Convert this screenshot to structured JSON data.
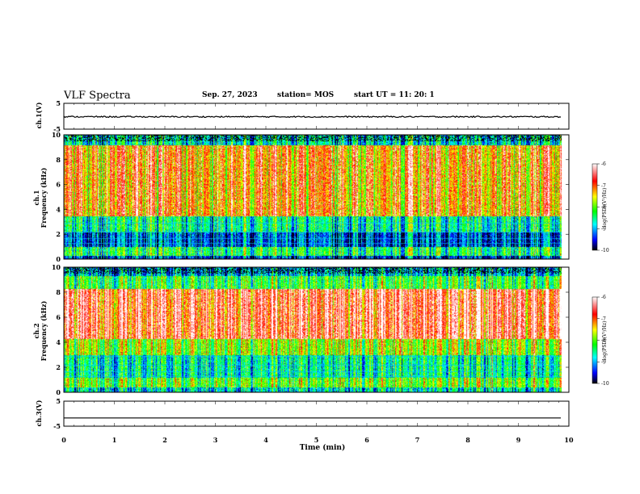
{
  "header": {
    "title": "VLF Spectra",
    "date": "Sep. 27, 2023",
    "station": "station= MOS",
    "start_ut": "start  UT =   11: 20: 1"
  },
  "chart_data": [
    {
      "type": "line",
      "panel": "ch1-waveform",
      "ylabel": "ch.1(V)",
      "ylim": [
        -5,
        5
      ],
      "ytick_labels": [
        "5",
        "-5"
      ],
      "xlim": [
        0,
        10
      ],
      "series_level": -0.2
    },
    {
      "type": "heatmap",
      "panel": "ch1-spectrogram",
      "ylabel_line1": "ch.1",
      "ylabel_line2": "Frequency (kHz)",
      "ylim": [
        0,
        10
      ],
      "ytick_labels": [
        "0",
        "2",
        "4",
        "6",
        "8",
        "10"
      ],
      "xlim": [
        0,
        10
      ],
      "data_end_min": 9.85,
      "colorbar": {
        "label": "log(PSD)(V²/Hz)",
        "range": [
          -10,
          -6
        ],
        "tick_labels": [
          "-6",
          "-7",
          "-8",
          "-9",
          "-10"
        ],
        "colors": [
          "#000000",
          "#0000ff",
          "#00ffff",
          "#00ff00",
          "#ffff00",
          "#ff0000",
          "#ffffff"
        ]
      },
      "bands": [
        {
          "from": 0.0,
          "to": 0.3,
          "level": -9.3
        },
        {
          "from": 0.3,
          "to": 1.0,
          "level": -8.2
        },
        {
          "from": 1.0,
          "to": 2.2,
          "level": -9.2
        },
        {
          "from": 2.2,
          "to": 3.5,
          "level": -8.4
        },
        {
          "from": 3.5,
          "to": 9.2,
          "level": -7.0
        },
        {
          "from": 9.2,
          "to": 10.0,
          "level": -8.6
        }
      ]
    },
    {
      "type": "heatmap",
      "panel": "ch2-spectrogram",
      "ylabel_line1": "ch.2",
      "ylabel_line2": "Frequency (kHz)",
      "ylim": [
        0,
        10
      ],
      "ytick_labels": [
        "0",
        "2",
        "4",
        "6",
        "8",
        "10"
      ],
      "xlim": [
        0,
        10
      ],
      "data_end_min": 9.85,
      "colorbar": {
        "label": "log(PSD)(V²/Hz)",
        "range": [
          -10,
          -6
        ],
        "tick_labels": [
          "-6",
          "-7",
          "-8",
          "-9",
          "-10"
        ],
        "colors": [
          "#000000",
          "#0000ff",
          "#00ffff",
          "#00ff00",
          "#ffff00",
          "#ff0000",
          "#ffffff"
        ]
      },
      "bands": [
        {
          "from": 0.0,
          "to": 0.4,
          "level": -8.6
        },
        {
          "from": 0.4,
          "to": 1.2,
          "level": -7.8
        },
        {
          "from": 1.2,
          "to": 3.0,
          "level": -8.4
        },
        {
          "from": 3.0,
          "to": 4.3,
          "level": -7.6
        },
        {
          "from": 4.3,
          "to": 8.3,
          "level": -6.5
        },
        {
          "from": 8.3,
          "to": 9.3,
          "level": -8.0
        },
        {
          "from": 9.3,
          "to": 10.0,
          "level": -8.8
        }
      ]
    },
    {
      "type": "line",
      "panel": "ch3-waveform",
      "ylabel": "ch.3(V)",
      "ylim": [
        -5,
        5
      ],
      "ytick_labels": [
        "5",
        "-5"
      ],
      "xlim": [
        0,
        10
      ],
      "series_level": -1.7
    }
  ],
  "xaxis": {
    "label": "Time (min)",
    "range": [
      0,
      10
    ],
    "tick_labels": [
      "0",
      "1",
      "2",
      "3",
      "4",
      "5",
      "6",
      "7",
      "8",
      "9",
      "10"
    ]
  }
}
